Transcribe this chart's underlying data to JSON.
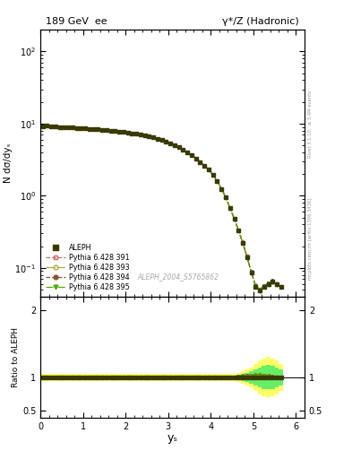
{
  "title_left": "189 GeV  ee",
  "title_right": "γ*/Z (Hadronic)",
  "ylabel_main": "N dσ/dyₛ",
  "ylabel_ratio": "Ratio to ALEPH",
  "xlabel": "yₛ",
  "watermark": "ALEPH_2004_S5765862",
  "right_label": "mcplots.cern.ch [arXiv:1306.3436]",
  "right_label2": "Rivet 3.1.10;  ≥ 3.4M events",
  "xlim": [
    0,
    6.2
  ],
  "ylim_main": [
    0.04,
    200
  ],
  "ylim_ratio": [
    0.4,
    2.2
  ],
  "data_x": [
    0.05,
    0.15,
    0.25,
    0.35,
    0.45,
    0.55,
    0.65,
    0.75,
    0.85,
    0.95,
    1.05,
    1.15,
    1.25,
    1.35,
    1.45,
    1.55,
    1.65,
    1.75,
    1.85,
    1.95,
    2.05,
    2.15,
    2.25,
    2.35,
    2.45,
    2.55,
    2.65,
    2.75,
    2.85,
    2.95,
    3.05,
    3.15,
    3.25,
    3.35,
    3.45,
    3.55,
    3.65,
    3.75,
    3.85,
    3.95,
    4.05,
    4.15,
    4.25,
    4.35,
    4.45,
    4.55,
    4.65,
    4.75,
    4.85,
    4.95,
    5.05,
    5.15,
    5.25,
    5.35,
    5.45,
    5.55,
    5.65
  ],
  "data_y": [
    9.2,
    9.3,
    9.2,
    9.1,
    9.0,
    8.9,
    8.85,
    8.8,
    8.75,
    8.7,
    8.6,
    8.5,
    8.4,
    8.3,
    8.2,
    8.1,
    8.0,
    7.9,
    7.8,
    7.65,
    7.5,
    7.35,
    7.2,
    7.0,
    6.8,
    6.6,
    6.4,
    6.15,
    5.9,
    5.6,
    5.3,
    5.0,
    4.7,
    4.35,
    4.0,
    3.65,
    3.3,
    2.95,
    2.6,
    2.3,
    1.95,
    1.6,
    1.25,
    0.95,
    0.68,
    0.48,
    0.33,
    0.22,
    0.14,
    0.085,
    0.055,
    0.048,
    0.055,
    0.06,
    0.065,
    0.06,
    0.055
  ],
  "data_yerr_lo": [
    0.2,
    0.2,
    0.2,
    0.19,
    0.19,
    0.18,
    0.18,
    0.18,
    0.17,
    0.17,
    0.17,
    0.16,
    0.16,
    0.15,
    0.15,
    0.14,
    0.14,
    0.14,
    0.13,
    0.13,
    0.12,
    0.12,
    0.11,
    0.11,
    0.1,
    0.1,
    0.1,
    0.09,
    0.09,
    0.09,
    0.08,
    0.08,
    0.07,
    0.07,
    0.06,
    0.06,
    0.05,
    0.05,
    0.04,
    0.04,
    0.035,
    0.03,
    0.025,
    0.02,
    0.016,
    0.013,
    0.01,
    0.008,
    0.006,
    0.005,
    0.004,
    0.004,
    0.004,
    0.005,
    0.005,
    0.005,
    0.004
  ],
  "mc_colors": [
    "#cc6666",
    "#aaaa44",
    "#885533",
    "#55aa00"
  ],
  "mc_linestyles": [
    "--",
    "-.",
    "--",
    "-."
  ],
  "mc_markers": [
    "s",
    "o",
    "o",
    "v"
  ],
  "mc_fillstyles": [
    "none",
    "none",
    "full",
    "full"
  ],
  "mc_labels": [
    "Pythia 6.428 391",
    "Pythia 6.428 393",
    "Pythia 6.428 394",
    "Pythia 6.428 395"
  ],
  "ratio_y_mc1": [
    1.0,
    1.0,
    1.0,
    1.0,
    1.0,
    1.0,
    1.0,
    1.0,
    1.0,
    1.0,
    1.0,
    1.0,
    1.0,
    1.0,
    1.0,
    1.0,
    1.0,
    1.0,
    1.0,
    1.0,
    1.0,
    1.0,
    1.0,
    1.0,
    1.0,
    1.0,
    1.0,
    1.0,
    1.0,
    1.0,
    1.0,
    1.0,
    1.0,
    1.0,
    1.0,
    1.0,
    1.0,
    1.0,
    1.0,
    1.0,
    1.0,
    1.0,
    1.0,
    1.0,
    1.0,
    1.0,
    1.01,
    1.01,
    1.02,
    1.02,
    1.03,
    1.03,
    1.02,
    1.01,
    1.0,
    1.0,
    1.0
  ],
  "ratio_y_mc2": [
    1.0,
    1.0,
    1.0,
    1.0,
    1.0,
    1.0,
    1.0,
    1.0,
    1.0,
    1.0,
    1.0,
    1.0,
    1.0,
    1.0,
    1.0,
    1.0,
    1.0,
    1.0,
    1.0,
    1.0,
    1.0,
    1.0,
    1.0,
    1.0,
    1.0,
    1.0,
    1.0,
    1.0,
    1.0,
    1.0,
    1.0,
    1.0,
    1.0,
    1.0,
    1.0,
    1.0,
    1.0,
    1.0,
    1.0,
    1.0,
    1.0,
    1.0,
    1.0,
    1.0,
    1.0,
    1.0,
    1.01,
    1.01,
    1.01,
    1.01,
    1.01,
    1.02,
    1.02,
    1.01,
    1.0,
    1.0,
    1.0
  ],
  "ratio_y_mc3": [
    1.0,
    1.0,
    1.0,
    1.0,
    1.0,
    1.0,
    1.0,
    1.0,
    1.0,
    1.0,
    1.0,
    1.0,
    1.0,
    1.0,
    1.0,
    1.0,
    1.0,
    1.0,
    1.0,
    1.0,
    1.0,
    1.0,
    1.0,
    1.0,
    1.0,
    1.0,
    1.0,
    1.0,
    1.0,
    1.0,
    1.0,
    1.0,
    1.0,
    1.0,
    1.0,
    1.0,
    1.0,
    1.0,
    1.0,
    1.0,
    1.0,
    1.0,
    1.0,
    1.0,
    1.0,
    1.0,
    1.01,
    1.02,
    1.02,
    1.03,
    1.04,
    1.04,
    1.03,
    1.02,
    1.01,
    1.0,
    1.0
  ],
  "ratio_y_mc4": [
    1.0,
    1.0,
    1.0,
    1.0,
    1.0,
    1.0,
    1.0,
    1.0,
    1.0,
    1.0,
    1.0,
    1.0,
    1.0,
    1.0,
    1.0,
    1.0,
    1.0,
    1.0,
    1.0,
    1.0,
    1.0,
    1.0,
    1.0,
    1.0,
    1.0,
    1.0,
    1.0,
    1.0,
    1.0,
    1.0,
    1.0,
    1.0,
    1.0,
    1.0,
    1.0,
    1.0,
    1.0,
    1.0,
    1.0,
    1.0,
    1.0,
    1.0,
    1.0,
    1.0,
    1.0,
    1.0,
    1.01,
    1.01,
    1.01,
    1.02,
    1.02,
    1.03,
    1.02,
    1.01,
    1.0,
    1.0,
    1.0
  ],
  "band_x_edges": [
    0.0,
    0.1,
    0.2,
    0.3,
    0.4,
    0.5,
    0.6,
    0.7,
    0.8,
    0.9,
    1.0,
    1.1,
    1.2,
    1.3,
    1.4,
    1.5,
    1.6,
    1.7,
    1.8,
    1.9,
    2.0,
    2.1,
    2.2,
    2.3,
    2.4,
    2.5,
    2.6,
    2.7,
    2.8,
    2.9,
    3.0,
    3.1,
    3.2,
    3.3,
    3.4,
    3.5,
    3.6,
    3.7,
    3.8,
    3.9,
    4.0,
    4.1,
    4.2,
    4.3,
    4.4,
    4.5,
    4.6,
    4.7,
    4.8,
    4.9,
    5.0,
    5.1,
    5.2,
    5.3,
    5.4,
    5.5,
    5.6,
    5.7
  ],
  "band_yellow_lo": [
    0.95,
    0.95,
    0.95,
    0.95,
    0.95,
    0.95,
    0.95,
    0.95,
    0.95,
    0.95,
    0.95,
    0.95,
    0.95,
    0.95,
    0.95,
    0.95,
    0.95,
    0.95,
    0.95,
    0.95,
    0.95,
    0.95,
    0.95,
    0.95,
    0.95,
    0.95,
    0.95,
    0.95,
    0.95,
    0.95,
    0.95,
    0.95,
    0.95,
    0.95,
    0.95,
    0.95,
    0.95,
    0.95,
    0.95,
    0.95,
    0.95,
    0.95,
    0.95,
    0.95,
    0.95,
    0.95,
    0.93,
    0.91,
    0.88,
    0.85,
    0.8,
    0.75,
    0.72,
    0.7,
    0.72,
    0.75,
    0.8
  ],
  "band_yellow_hi": [
    1.05,
    1.05,
    1.05,
    1.05,
    1.05,
    1.05,
    1.05,
    1.05,
    1.05,
    1.05,
    1.05,
    1.05,
    1.05,
    1.05,
    1.05,
    1.05,
    1.05,
    1.05,
    1.05,
    1.05,
    1.05,
    1.05,
    1.05,
    1.05,
    1.05,
    1.05,
    1.05,
    1.05,
    1.05,
    1.05,
    1.05,
    1.05,
    1.05,
    1.05,
    1.05,
    1.05,
    1.05,
    1.05,
    1.05,
    1.05,
    1.05,
    1.05,
    1.05,
    1.05,
    1.05,
    1.05,
    1.07,
    1.09,
    1.12,
    1.15,
    1.2,
    1.25,
    1.28,
    1.3,
    1.28,
    1.25,
    1.2
  ],
  "band_green_lo": [
    0.97,
    0.97,
    0.97,
    0.97,
    0.97,
    0.97,
    0.97,
    0.97,
    0.97,
    0.97,
    0.97,
    0.97,
    0.97,
    0.97,
    0.97,
    0.97,
    0.97,
    0.97,
    0.97,
    0.97,
    0.97,
    0.97,
    0.97,
    0.97,
    0.97,
    0.97,
    0.97,
    0.97,
    0.97,
    0.97,
    0.97,
    0.97,
    0.97,
    0.97,
    0.97,
    0.97,
    0.97,
    0.97,
    0.97,
    0.97,
    0.97,
    0.97,
    0.97,
    0.97,
    0.97,
    0.97,
    0.96,
    0.95,
    0.93,
    0.91,
    0.88,
    0.85,
    0.83,
    0.82,
    0.83,
    0.85,
    0.88
  ],
  "band_green_hi": [
    1.03,
    1.03,
    1.03,
    1.03,
    1.03,
    1.03,
    1.03,
    1.03,
    1.03,
    1.03,
    1.03,
    1.03,
    1.03,
    1.03,
    1.03,
    1.03,
    1.03,
    1.03,
    1.03,
    1.03,
    1.03,
    1.03,
    1.03,
    1.03,
    1.03,
    1.03,
    1.03,
    1.03,
    1.03,
    1.03,
    1.03,
    1.03,
    1.03,
    1.03,
    1.03,
    1.03,
    1.03,
    1.03,
    1.03,
    1.03,
    1.03,
    1.03,
    1.03,
    1.03,
    1.03,
    1.03,
    1.04,
    1.05,
    1.07,
    1.09,
    1.12,
    1.15,
    1.17,
    1.18,
    1.17,
    1.15,
    1.12
  ],
  "color_data": "#3a3a00",
  "color_yellow": "#ffff66",
  "color_green": "#66ee66",
  "bg_color": "#ffffff"
}
